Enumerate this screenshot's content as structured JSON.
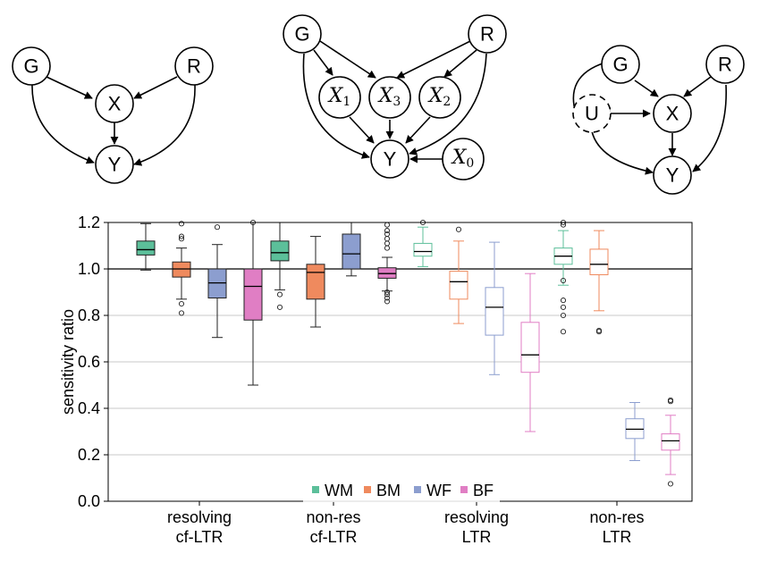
{
  "diagrams": [
    {
      "nodes": [
        {
          "id": "G",
          "label": "G"
        },
        {
          "id": "R",
          "label": "R"
        },
        {
          "id": "X",
          "label": "X"
        },
        {
          "id": "Y",
          "label": "Y"
        }
      ],
      "edges": [
        [
          "G",
          "X"
        ],
        [
          "R",
          "X"
        ],
        [
          "X",
          "Y"
        ],
        [
          "G",
          "Y"
        ],
        [
          "R",
          "Y"
        ]
      ]
    },
    {
      "nodes": [
        {
          "id": "G",
          "label": "G"
        },
        {
          "id": "R",
          "label": "R"
        },
        {
          "id": "X1",
          "label": "X",
          "sub": "1"
        },
        {
          "id": "X3",
          "label": "X",
          "sub": "3"
        },
        {
          "id": "X2",
          "label": "X",
          "sub": "2"
        },
        {
          "id": "Y",
          "label": "Y"
        },
        {
          "id": "X0",
          "label": "X",
          "sub": "0"
        }
      ],
      "edges": [
        [
          "G",
          "X1"
        ],
        [
          "G",
          "X3"
        ],
        [
          "R",
          "X3"
        ],
        [
          "R",
          "X2"
        ],
        [
          "X1",
          "Y"
        ],
        [
          "X3",
          "Y"
        ],
        [
          "X2",
          "Y"
        ],
        [
          "X0",
          "Y"
        ],
        [
          "G",
          "Y"
        ],
        [
          "R",
          "Y"
        ]
      ]
    },
    {
      "nodes": [
        {
          "id": "G",
          "label": "G"
        },
        {
          "id": "R",
          "label": "R"
        },
        {
          "id": "U",
          "label": "U",
          "latent": true
        },
        {
          "id": "X",
          "label": "X"
        },
        {
          "id": "Y",
          "label": "Y"
        }
      ],
      "edges": [
        [
          "G",
          "X"
        ],
        [
          "R",
          "X"
        ],
        [
          "U",
          "X"
        ],
        [
          "X",
          "Y"
        ],
        [
          "U",
          "Y"
        ],
        [
          "R",
          "Y"
        ]
      ]
    }
  ],
  "chart_data": {
    "type": "box",
    "ylabel": "sensitivity ratio",
    "ylim": [
      0.0,
      1.2
    ],
    "yticks": [
      "0.0",
      "0.2",
      "0.4",
      "0.6",
      "0.8",
      "1.0",
      "1.2"
    ],
    "grid": "horizontal",
    "reference_line": 1.0,
    "legend_position": "bottom-center",
    "categories": [
      {
        "line1": "resolving",
        "line2": "cf-LTR"
      },
      {
        "line1": "non-res",
        "line2": "cf-LTR"
      },
      {
        "line1": "resolving",
        "line2": "LTR"
      },
      {
        "line1": "non-res",
        "line2": "LTR"
      }
    ],
    "series": [
      {
        "name": "WM",
        "color": "#5cbf9a"
      },
      {
        "name": "BM",
        "color": "#ef8a5e"
      },
      {
        "name": "WF",
        "color": "#8c9ecf"
      },
      {
        "name": "BF",
        "color": "#e07ec4"
      }
    ],
    "boxes": [
      {
        "group": 0,
        "series": 0,
        "filled": true,
        "whislo": 0.995,
        "q1": 1.06,
        "med": 1.083,
        "q3": 1.12,
        "whishi": 1.195,
        "fliers": []
      },
      {
        "group": 0,
        "series": 1,
        "filled": true,
        "whislo": 0.87,
        "q1": 0.965,
        "med": 1.0,
        "q3": 1.03,
        "whishi": 1.09,
        "fliers": [
          0.81,
          0.85,
          1.13,
          1.14,
          1.195
        ]
      },
      {
        "group": 0,
        "series": 2,
        "filled": true,
        "whislo": 0.705,
        "q1": 0.875,
        "med": 0.94,
        "q3": 1.0,
        "whishi": 1.105,
        "fliers": [
          1.18
        ]
      },
      {
        "group": 0,
        "series": 3,
        "filled": true,
        "whislo": 0.5,
        "q1": 0.78,
        "med": 0.925,
        "q3": 1.0,
        "whishi": 1.2,
        "fliers": [
          1.2
        ]
      },
      {
        "group": 1,
        "series": 0,
        "filled": true,
        "whislo": 0.91,
        "q1": 1.035,
        "med": 1.07,
        "q3": 1.12,
        "whishi": 1.2,
        "fliers": [
          0.835,
          0.89
        ]
      },
      {
        "group": 1,
        "series": 1,
        "filled": true,
        "whislo": 0.75,
        "q1": 0.87,
        "med": 0.985,
        "q3": 1.02,
        "whishi": 1.14,
        "fliers": []
      },
      {
        "group": 1,
        "series": 2,
        "filled": true,
        "whislo": 0.97,
        "q1": 1.0,
        "med": 1.065,
        "q3": 1.15,
        "whishi": 1.2,
        "fliers": []
      },
      {
        "group": 1,
        "series": 3,
        "filled": true,
        "whislo": 0.905,
        "q1": 0.96,
        "med": 0.98,
        "q3": 1.005,
        "whishi": 1.05,
        "fliers": [
          0.86,
          0.875,
          0.89,
          0.9,
          1.09,
          1.11,
          1.13,
          1.15,
          1.165,
          1.19
        ]
      },
      {
        "group": 2,
        "series": 0,
        "filled": false,
        "whislo": 1.01,
        "q1": 1.055,
        "med": 1.075,
        "q3": 1.11,
        "whishi": 1.18,
        "fliers": [
          1.2
        ]
      },
      {
        "group": 2,
        "series": 1,
        "filled": false,
        "whislo": 0.765,
        "q1": 0.87,
        "med": 0.945,
        "q3": 0.99,
        "whishi": 1.12,
        "fliers": [
          1.17
        ]
      },
      {
        "group": 2,
        "series": 2,
        "filled": false,
        "whislo": 0.545,
        "q1": 0.715,
        "med": 0.835,
        "q3": 0.92,
        "whishi": 1.115,
        "fliers": []
      },
      {
        "group": 2,
        "series": 3,
        "filled": false,
        "whislo": 0.3,
        "q1": 0.555,
        "med": 0.63,
        "q3": 0.77,
        "whishi": 0.98,
        "fliers": []
      },
      {
        "group": 3,
        "series": 0,
        "filled": false,
        "whislo": 0.93,
        "q1": 1.02,
        "med": 1.055,
        "q3": 1.09,
        "whishi": 1.165,
        "fliers": [
          0.73,
          0.8,
          0.835,
          0.865,
          0.95,
          1.19,
          1.2
        ]
      },
      {
        "group": 3,
        "series": 1,
        "filled": false,
        "whislo": 0.82,
        "q1": 0.975,
        "med": 1.02,
        "q3": 1.085,
        "whishi": 1.165,
        "fliers": [
          0.73,
          0.735
        ]
      },
      {
        "group": 3,
        "series": 2,
        "filled": false,
        "whislo": 0.175,
        "q1": 0.27,
        "med": 0.31,
        "q3": 0.355,
        "whishi": 0.425,
        "fliers": []
      },
      {
        "group": 3,
        "series": 3,
        "filled": false,
        "whislo": 0.115,
        "q1": 0.22,
        "med": 0.26,
        "q3": 0.29,
        "whishi": 0.37,
        "fliers": [
          0.075,
          0.43,
          0.435
        ]
      }
    ]
  }
}
